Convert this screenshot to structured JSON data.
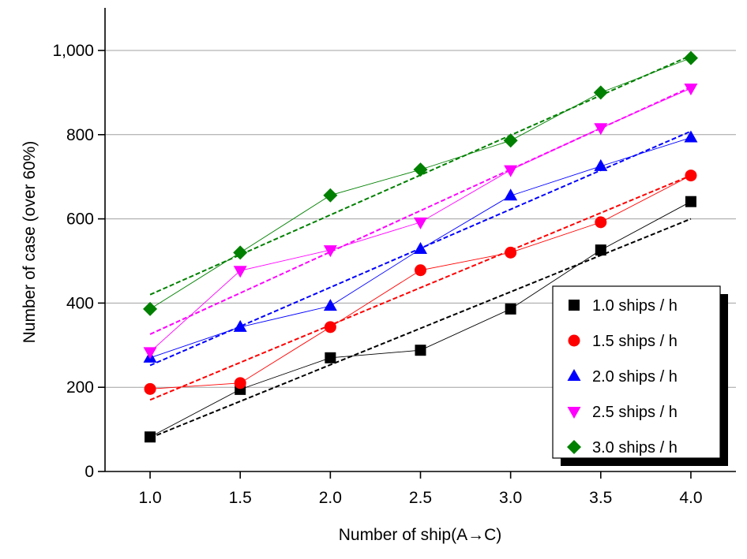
{
  "chart_data": {
    "type": "line",
    "xlabel": "Number of ship(A→C)",
    "ylabel": "Number of case (over 60%)",
    "x": [
      1.0,
      1.5,
      2.0,
      2.5,
      3.0,
      3.5,
      4.0
    ],
    "x_tick_labels": [
      "1.0",
      "1.5",
      "2.0",
      "2.5",
      "3.0",
      "3.5",
      "4.0"
    ],
    "xlim": [
      0.75,
      4.25
    ],
    "ylim": [
      0,
      1000
    ],
    "y_ticks": [
      0,
      200,
      400,
      600,
      800,
      1000
    ],
    "y_tick_labels": [
      "0",
      "200",
      "400",
      "600",
      "800",
      "1,000"
    ],
    "grid": "horizontal",
    "legend_position": "bottom-right",
    "series": [
      {
        "name": "1.0 ships / h",
        "color": "#000000",
        "marker": "square",
        "values": [
          82,
          195,
          270,
          288,
          386,
          526,
          641
        ],
        "trend": [
          80,
          600
        ]
      },
      {
        "name": "1.5 ships / h",
        "color": "#ff0000",
        "marker": "circle",
        "values": [
          196,
          210,
          343,
          478,
          520,
          592,
          703
        ],
        "trend": [
          170,
          703
        ]
      },
      {
        "name": "2.0 ships / h",
        "color": "#0000ff",
        "marker": "triangle-up",
        "values": [
          270,
          343,
          393,
          528,
          655,
          725,
          793
        ],
        "trend": [
          252,
          808
        ]
      },
      {
        "name": "2.5 ships / h",
        "color": "#ff00ff",
        "marker": "triangle-down",
        "values": [
          284,
          477,
          526,
          592,
          716,
          816,
          910
        ],
        "trend": [
          326,
          913
        ]
      },
      {
        "name": "3.0 ships / h",
        "color": "#008000",
        "marker": "diamond",
        "values": [
          386,
          520,
          656,
          717,
          786,
          900,
          982
        ],
        "trend": [
          420,
          988
        ]
      }
    ]
  }
}
